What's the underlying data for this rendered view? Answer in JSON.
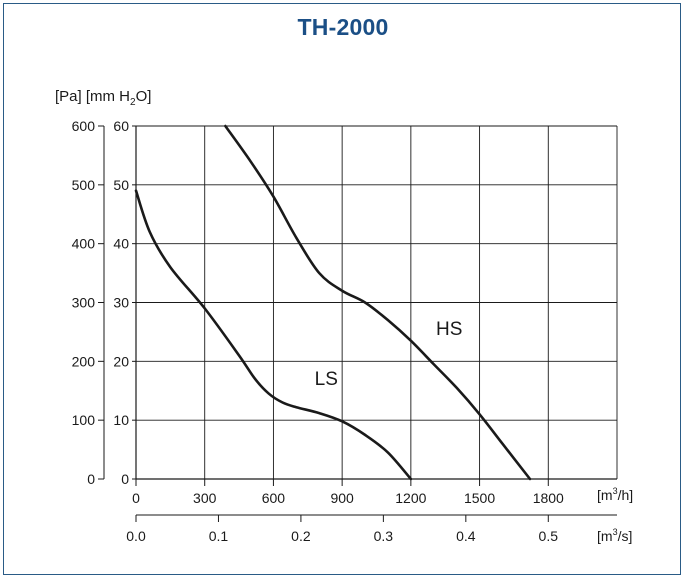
{
  "title": "TH-2000",
  "chart_data": {
    "type": "line",
    "y_unit_label_prefix": "[Pa] [mm H",
    "y_unit_label_sub": "2",
    "y_unit_label_suffix": "O]",
    "x_unit_label_1": "[m3/h]",
    "x_unit_label_1_base": "[m",
    "x_unit_label_1_sup": "3",
    "x_unit_label_1_end": "/h]",
    "x_unit_label_2_base": "[m",
    "x_unit_label_2_sup": "3",
    "x_unit_label_2_end": "/s]",
    "xlim": [
      0,
      2100
    ],
    "ylim": [
      0,
      600
    ],
    "x_ticks_m3h": [
      "0",
      "300",
      "600",
      "900",
      "1200",
      "1500",
      "1800"
    ],
    "x_ticks_m3h_values": [
      0,
      300,
      600,
      900,
      1200,
      1500,
      1800
    ],
    "x_ticks_m3s": [
      "0.0",
      "0.1",
      "0.2",
      "0.3",
      "0.4",
      "0.5"
    ],
    "x_ticks_m3s_values": [
      0.0,
      0.1,
      0.2,
      0.3,
      0.4,
      0.5
    ],
    "y_ticks_pa": [
      "0",
      "100",
      "200",
      "300",
      "400",
      "500",
      "600"
    ],
    "y_ticks_pa_values": [
      0,
      100,
      200,
      300,
      400,
      500,
      600
    ],
    "y_ticks_mmh2o": [
      "0",
      "10",
      "20",
      "30",
      "40",
      "50",
      "60"
    ],
    "grid": true,
    "series": [
      {
        "name": "LS",
        "x": [
          0,
          60,
          150,
          300,
          450,
          520,
          580,
          640,
          700,
          800,
          900,
          1000,
          1100,
          1200
        ],
        "y": [
          490,
          420,
          360,
          290,
          210,
          170,
          145,
          130,
          122,
          112,
          98,
          75,
          45,
          0
        ]
      },
      {
        "name": "HS",
        "x": [
          390,
          500,
          600,
          700,
          800,
          900,
          1000,
          1100,
          1200,
          1300,
          1400,
          1500,
          1600,
          1720
        ],
        "y": [
          600,
          540,
          480,
          410,
          350,
          320,
          300,
          270,
          235,
          195,
          155,
          110,
          60,
          0
        ]
      }
    ],
    "annotations": [
      {
        "text": "LS",
        "x": 780,
        "y": 160
      },
      {
        "text": "HS",
        "x": 1310,
        "y": 245
      }
    ]
  }
}
